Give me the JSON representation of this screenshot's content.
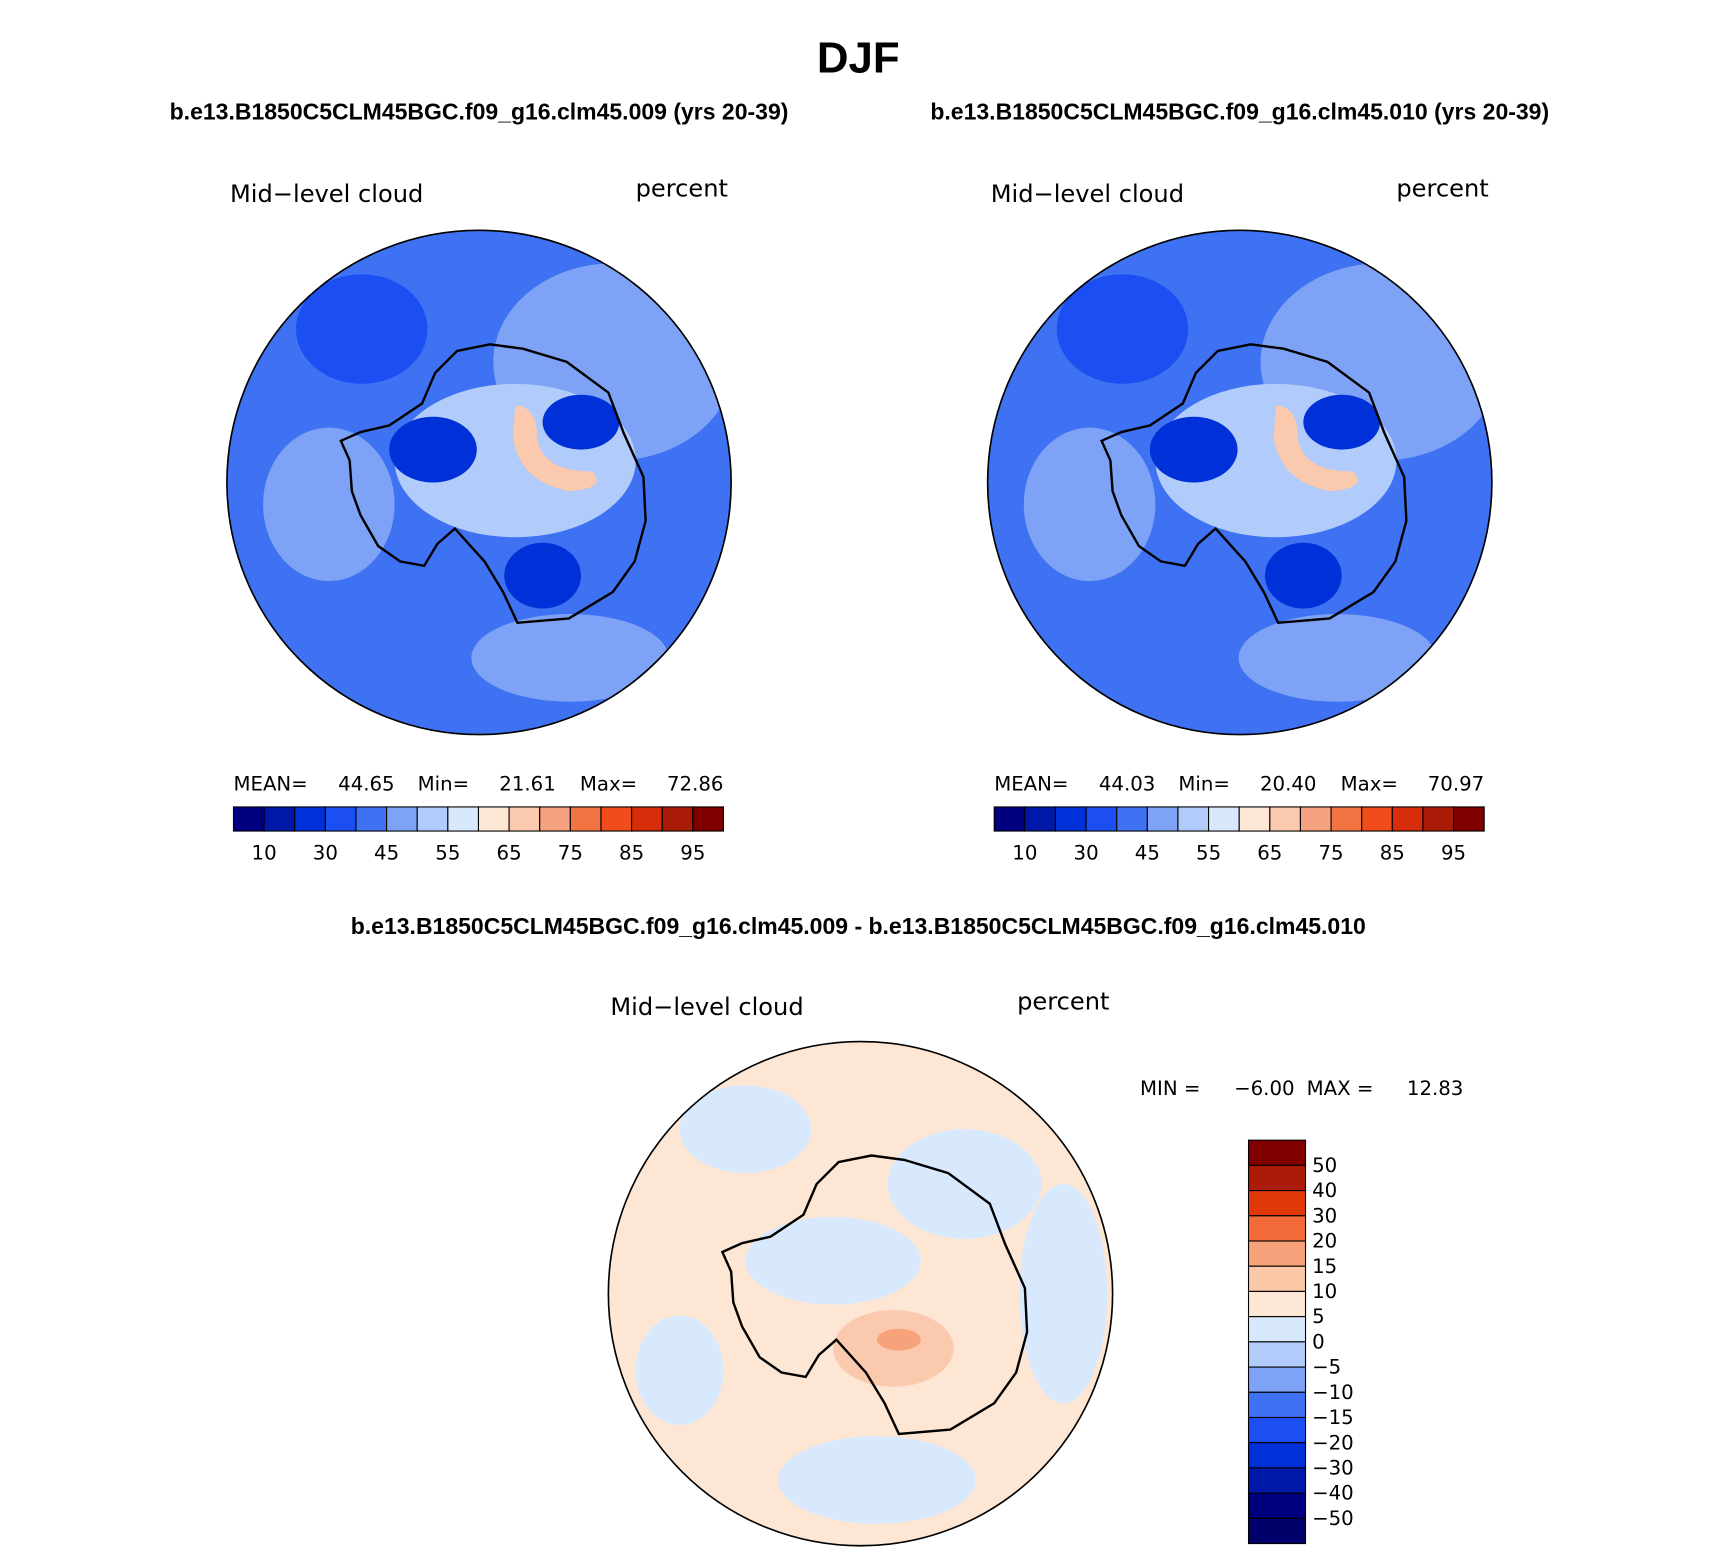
{
  "title": "DJF",
  "panels": [
    {
      "heading": "b.e13.B1850C5CLM45BGC.f09_g16.clm45.009 (yrs 20-39)",
      "left_label": "Mid−level cloud",
      "right_label": "percent",
      "stats": [
        {
          "label": "MEAN=",
          "value": 44.65
        },
        {
          "label": "Min=",
          "value": 21.61
        },
        {
          "label": "Max=",
          "value": 72.86
        }
      ],
      "colorbar": {
        "colors": [
          "#00007f",
          "#0018a8",
          "#0030d8",
          "#1c4ff2",
          "#3f72f2",
          "#7ea3f6",
          "#b1cbfa",
          "#d8e9fd",
          "#fde7d4",
          "#fbc9ae",
          "#f6a17f",
          "#f27443",
          "#f04c1c",
          "#d62e0a",
          "#ab1c08",
          "#800000"
        ],
        "ticks": [
          10,
          30,
          45,
          55,
          65,
          75,
          85,
          95
        ]
      }
    },
    {
      "heading": "b.e13.B1850C5CLM45BGC.f09_g16.clm45.010 (yrs 20-39)",
      "left_label": "Mid−level cloud",
      "right_label": "percent",
      "stats": [
        {
          "label": "MEAN=",
          "value": 44.03
        },
        {
          "label": "Min=",
          "value": {
            "value": 20.4,
            "label": "20.40"
          }
        },
        {
          "label": "Max=",
          "value": 70.97
        }
      ],
      "colorbar": {
        "colors": [
          "#00007f",
          "#0018a8",
          "#0030d8",
          "#1c4ff2",
          "#3f72f2",
          "#7ea3f6",
          "#b1cbfa",
          "#d8e9fd",
          "#fde7d4",
          "#fbc9ae",
          "#f6a17f",
          "#f27443",
          "#f04c1c",
          "#d62e0a",
          "#ab1c08",
          "#800000"
        ],
        "ticks": [
          10,
          30,
          45,
          55,
          65,
          75,
          85,
          95
        ]
      }
    }
  ],
  "difference": {
    "heading": "b.e13.B1850C5CLM45BGC.f09_g16.clm45.009 - b.e13.B1850C5CLM45BGC.f09_g16.clm45.010",
    "left_label": "Mid−level cloud",
    "right_label": "percent",
    "stats": [
      {
        "label": "MIN =",
        "value": {
          "value": -6,
          "label": "−6.00"
        }
      },
      {
        "label": "MAX =",
        "value": 12.83
      }
    ],
    "colorbar": {
      "colors": [
        "#800000",
        "#ab1c08",
        "#e03a0a",
        "#f26b38",
        "#f8a27c",
        "#fbc8a8",
        "#fde7d4",
        "#d8e9fd",
        "#b1cbfa",
        "#7ea3f6",
        "#3f72f2",
        "#1c4ff2",
        "#0030d8",
        "#0018a8",
        "#00007f",
        "#00006a"
      ],
      "ticks": [
        50,
        40,
        30,
        20,
        15,
        10,
        5,
        0,
        {
          "value": -5,
          "label": "−5"
        },
        {
          "value": -10,
          "label": "−10"
        },
        {
          "value": -15,
          "label": "−15"
        },
        {
          "value": -20,
          "label": "−20"
        },
        {
          "value": -30,
          "label": "−30"
        },
        {
          "value": -40,
          "label": "−40"
        },
        {
          "value": -50,
          "label": "−50"
        }
      ]
    }
  }
}
